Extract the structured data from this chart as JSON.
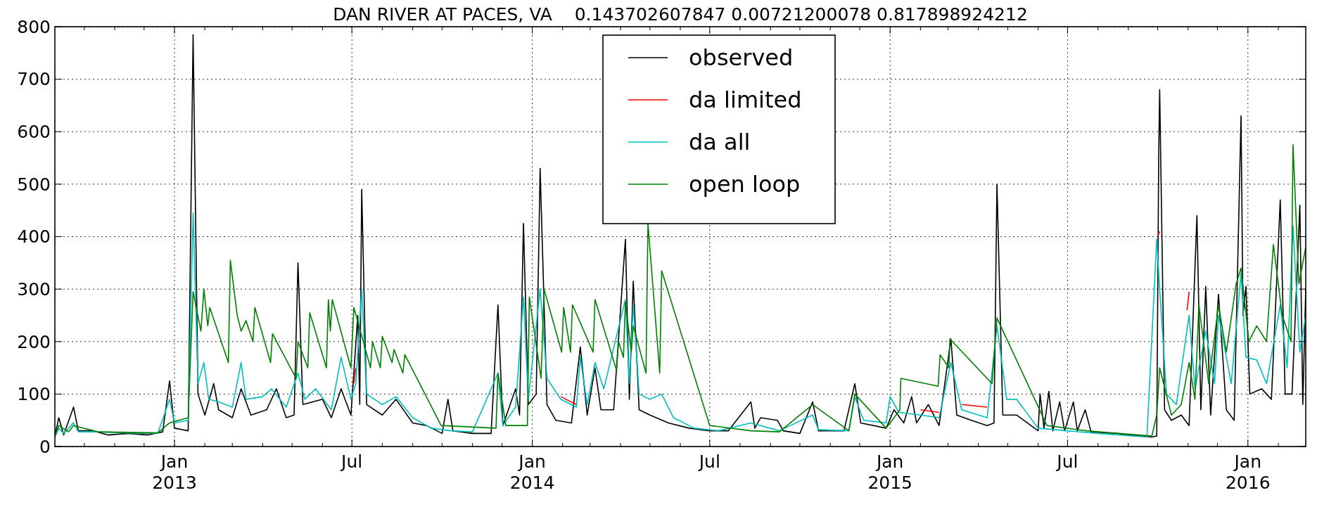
{
  "chart_data": {
    "type": "line",
    "title": "DAN RIVER AT PACES, VA    0.143702607847 0.00721200078 0.817898924212",
    "xlim": [
      "2012-09-01",
      "2016-02-29"
    ],
    "xticks": [
      {
        "value": "2012-10-01",
        "label": null
      },
      {
        "value": "2012-11-01",
        "label": null
      },
      {
        "value": "2012-12-01",
        "label": null
      },
      {
        "value": "2013-01-01",
        "label": "Jan\n2013"
      },
      {
        "value": "2013-02-01",
        "label": null
      },
      {
        "value": "2013-03-01",
        "label": null
      },
      {
        "value": "2013-04-01",
        "label": null
      },
      {
        "value": "2013-05-01",
        "label": null
      },
      {
        "value": "2013-06-01",
        "label": null
      },
      {
        "value": "2013-07-01",
        "label": "Jul"
      },
      {
        "value": "2013-08-01",
        "label": null
      },
      {
        "value": "2013-09-01",
        "label": null
      },
      {
        "value": "2013-10-01",
        "label": null
      },
      {
        "value": "2013-11-01",
        "label": null
      },
      {
        "value": "2013-12-01",
        "label": null
      },
      {
        "value": "2014-01-01",
        "label": "Jan\n2014"
      },
      {
        "value": "2014-02-01",
        "label": null
      },
      {
        "value": "2014-03-01",
        "label": null
      },
      {
        "value": "2014-04-01",
        "label": null
      },
      {
        "value": "2014-05-01",
        "label": null
      },
      {
        "value": "2014-06-01",
        "label": null
      },
      {
        "value": "2014-07-01",
        "label": "Jul"
      },
      {
        "value": "2014-08-01",
        "label": null
      },
      {
        "value": "2014-09-01",
        "label": null
      },
      {
        "value": "2014-10-01",
        "label": null
      },
      {
        "value": "2014-11-01",
        "label": null
      },
      {
        "value": "2014-12-01",
        "label": null
      },
      {
        "value": "2015-01-01",
        "label": "Jan\n2015"
      },
      {
        "value": "2015-02-01",
        "label": null
      },
      {
        "value": "2015-03-01",
        "label": null
      },
      {
        "value": "2015-04-01",
        "label": null
      },
      {
        "value": "2015-05-01",
        "label": null
      },
      {
        "value": "2015-06-01",
        "label": null
      },
      {
        "value": "2015-07-01",
        "label": "Jul"
      },
      {
        "value": "2015-08-01",
        "label": null
      },
      {
        "value": "2015-09-01",
        "label": null
      },
      {
        "value": "2015-10-01",
        "label": null
      },
      {
        "value": "2015-11-01",
        "label": null
      },
      {
        "value": "2015-12-01",
        "label": null
      },
      {
        "value": "2016-01-01",
        "label": "Jan\n2016"
      },
      {
        "value": "2016-02-01",
        "label": null
      }
    ],
    "ylim": [
      0,
      800
    ],
    "yticks": [
      0,
      100,
      200,
      300,
      400,
      500,
      600,
      700,
      800
    ],
    "grid": true,
    "legend": "top",
    "line_style": "solid",
    "marker": "none",
    "series": [
      {
        "name": "observed",
        "color": "#000000",
        "x": [
          "2012-09-01",
          "2012-09-05",
          "2012-09-10",
          "2012-09-20",
          "2012-09-25",
          "2012-10-10",
          "2012-10-25",
          "2012-11-15",
          "2012-12-05",
          "2012-12-20",
          "2012-12-27",
          "2013-01-01",
          "2013-01-15",
          "2013-01-20",
          "2013-01-25",
          "2013-02-01",
          "2013-02-10",
          "2013-02-15",
          "2013-03-01",
          "2013-03-10",
          "2013-03-20",
          "2013-04-05",
          "2013-04-15",
          "2013-04-25",
          "2013-05-03",
          "2013-05-07",
          "2013-05-12",
          "2013-06-01",
          "2013-06-10",
          "2013-06-20",
          "2013-06-30",
          "2013-07-07",
          "2013-07-09",
          "2013-07-11",
          "2013-07-16",
          "2013-08-01",
          "2013-08-15",
          "2013-09-01",
          "2013-09-15",
          "2013-10-01",
          "2013-10-07",
          "2013-10-12",
          "2013-11-01",
          "2013-11-20",
          "2013-11-27",
          "2013-12-02",
          "2013-12-15",
          "2013-12-19",
          "2013-12-23",
          "2013-12-28",
          "2014-01-05",
          "2014-01-09",
          "2014-01-16",
          "2014-01-25",
          "2014-02-10",
          "2014-02-19",
          "2014-02-26",
          "2014-03-06",
          "2014-03-12",
          "2014-03-25",
          "2014-04-06",
          "2014-04-10",
          "2014-04-14",
          "2014-04-20",
          "2014-05-01",
          "2014-05-20",
          "2014-06-10",
          "2014-07-01",
          "2014-07-20",
          "2014-08-12",
          "2014-08-16",
          "2014-08-22",
          "2014-09-08",
          "2014-09-14",
          "2014-10-01",
          "2014-10-14",
          "2014-10-20",
          "2014-11-15",
          "2014-11-26",
          "2014-12-02",
          "2014-12-28",
          "2015-01-05",
          "2015-01-15",
          "2015-01-23",
          "2015-01-28",
          "2015-02-09",
          "2015-02-20",
          "2015-03-04",
          "2015-03-10",
          "2015-03-25",
          "2015-04-10",
          "2015-04-17",
          "2015-04-20",
          "2015-04-26",
          "2015-05-10",
          "2015-06-01",
          "2015-06-03",
          "2015-06-07",
          "2015-06-12",
          "2015-06-16",
          "2015-06-23",
          "2015-06-28",
          "2015-07-07",
          "2015-07-11",
          "2015-07-19",
          "2015-07-25",
          "2015-08-20",
          "2015-09-25",
          "2015-09-30",
          "2015-10-02",
          "2015-10-03",
          "2015-10-08",
          "2015-10-15",
          "2015-10-25",
          "2015-11-02",
          "2015-11-10",
          "2015-11-14",
          "2015-11-19",
          "2015-11-24",
          "2015-12-02",
          "2015-12-10",
          "2015-12-18",
          "2015-12-25",
          "2015-12-27",
          "2015-12-30",
          "2016-01-03",
          "2016-01-15",
          "2016-01-25",
          "2016-02-03",
          "2016-02-08",
          "2016-02-15",
          "2016-02-23",
          "2016-02-26",
          "2016-02-29"
        ],
        "values": [
          20,
          55,
          22,
          75,
          30,
          30,
          22,
          25,
          22,
          28,
          125,
          35,
          30,
          785,
          100,
          60,
          120,
          70,
          55,
          110,
          60,
          70,
          110,
          55,
          60,
          350,
          80,
          90,
          55,
          110,
          60,
          250,
          80,
          490,
          80,
          60,
          90,
          45,
          40,
          25,
          90,
          30,
          25,
          25,
          270,
          40,
          110,
          60,
          425,
          80,
          100,
          530,
          80,
          50,
          45,
          190,
          60,
          150,
          70,
          70,
          395,
          90,
          315,
          70,
          60,
          45,
          35,
          30,
          30,
          85,
          35,
          55,
          50,
          30,
          25,
          85,
          30,
          30,
          120,
          45,
          35,
          70,
          45,
          95,
          45,
          80,
          40,
          205,
          60,
          50,
          40,
          45,
          500,
          60,
          60,
          30,
          100,
          35,
          105,
          30,
          85,
          30,
          85,
          30,
          70,
          28,
          25,
          18,
          20,
          550,
          680,
          70,
          50,
          60,
          40,
          440,
          70,
          305,
          60,
          290,
          70,
          50,
          630,
          250,
          305,
          100,
          110,
          90,
          470,
          100,
          100,
          460,
          80,
          300
        ]
      },
      {
        "name": "da limited",
        "color": "#ff0000",
        "x": [
          "2013-07-03",
          "2013-07-05",
          "2013-10-01",
          "2014-01-30",
          "2014-02-15",
          "2014-06-01",
          "2015-02-01",
          "2015-02-20",
          "2015-03-10",
          "2015-03-15",
          "2015-04-10",
          "2015-06-01",
          "2015-10-01",
          "2015-10-03",
          "2015-10-15",
          "2015-10-31",
          "2015-11-02"
        ],
        "values": [
          120,
          150,
          null,
          95,
          80,
          null,
          70,
          65,
          null,
          80,
          75,
          null,
          400,
          410,
          null,
          260,
          295
        ]
      },
      {
        "name": "da all",
        "color": "#00bfbf",
        "x": [
          "2012-09-01",
          "2012-09-05",
          "2012-09-10",
          "2012-09-20",
          "2012-09-25",
          "2012-10-15",
          "2012-11-15",
          "2012-12-15",
          "2012-12-27",
          "2013-01-01",
          "2013-01-15",
          "2013-01-20",
          "2013-01-25",
          "2013-01-31",
          "2013-02-05",
          "2013-02-15",
          "2013-03-01",
          "2013-03-10",
          "2013-03-15",
          "2013-04-01",
          "2013-04-10",
          "2013-04-25",
          "2013-05-07",
          "2013-05-14",
          "2013-05-25",
          "2013-06-10",
          "2013-06-20",
          "2013-06-30",
          "2013-07-05",
          "2013-07-11",
          "2013-07-16",
          "2013-08-01",
          "2013-08-15",
          "2013-09-01",
          "2013-09-20",
          "2013-10-10",
          "2013-11-01",
          "2013-11-27",
          "2013-12-02",
          "2013-12-15",
          "2013-12-23",
          "2013-12-28",
          "2014-01-09",
          "2014-01-16",
          "2014-01-30",
          "2014-02-15",
          "2014-02-19",
          "2014-02-26",
          "2014-03-06",
          "2014-03-15",
          "2014-04-06",
          "2014-04-10",
          "2014-04-14",
          "2014-04-20",
          "2014-05-01",
          "2014-05-13",
          "2014-05-25",
          "2014-06-15",
          "2014-07-10",
          "2014-08-12",
          "2014-09-10",
          "2014-10-14",
          "2014-10-20",
          "2014-11-20",
          "2014-11-26",
          "2014-12-05",
          "2014-12-28",
          "2015-01-01",
          "2015-01-10",
          "2015-02-01",
          "2015-02-20",
          "2015-03-04",
          "2015-03-15",
          "2015-04-10",
          "2015-04-20",
          "2015-04-30",
          "2015-05-10",
          "2015-06-01",
          "2015-07-01",
          "2015-08-01",
          "2015-09-20",
          "2015-09-30",
          "2015-10-03",
          "2015-10-10",
          "2015-10-20",
          "2015-11-02",
          "2015-11-08",
          "2015-11-19",
          "2015-11-28",
          "2015-12-02",
          "2015-12-15",
          "2015-12-25",
          "2015-12-30",
          "2016-01-10",
          "2016-01-20",
          "2016-02-03",
          "2016-02-10",
          "2016-02-16",
          "2016-02-23",
          "2016-02-29"
        ],
        "values": [
          18,
          35,
          25,
          45,
          28,
          28,
          26,
          25,
          90,
          45,
          50,
          445,
          120,
          160,
          90,
          85,
          75,
          160,
          90,
          95,
          110,
          75,
          140,
          90,
          110,
          70,
          170,
          90,
          120,
          300,
          100,
          80,
          95,
          55,
          35,
          30,
          28,
          140,
          40,
          75,
          285,
          90,
          300,
          130,
          90,
          75,
          170,
          80,
          160,
          110,
          280,
          120,
          270,
          100,
          90,
          100,
          55,
          35,
          30,
          45,
          30,
          60,
          32,
          30,
          95,
          50,
          45,
          95,
          65,
          60,
          55,
          160,
          70,
          55,
          230,
          90,
          90,
          35,
          30,
          25,
          18,
          395,
          300,
          100,
          80,
          250,
          110,
          220,
          120,
          250,
          120,
          330,
          170,
          165,
          120,
          270,
          150,
          420,
          180,
          250
        ]
      },
      {
        "name": "open loop",
        "color": "#008000",
        "x": [
          "2012-09-01",
          "2012-09-05",
          "2012-09-15",
          "2012-09-20",
          "2012-10-15",
          "2012-11-15",
          "2012-12-15",
          "2012-12-27",
          "2013-01-15",
          "2013-01-20",
          "2013-01-28",
          "2013-01-31",
          "2013-02-04",
          "2013-02-06",
          "2013-02-25",
          "2013-02-27",
          "2013-03-06",
          "2013-03-10",
          "2013-03-15",
          "2013-03-22",
          "2013-03-24",
          "2013-04-09",
          "2013-04-11",
          "2013-05-05",
          "2013-05-07",
          "2013-05-17",
          "2013-05-19",
          "2013-06-05",
          "2013-06-07",
          "2013-06-09",
          "2013-06-11",
          "2013-06-30",
          "2013-07-03",
          "2013-07-20",
          "2013-07-22",
          "2013-07-30",
          "2013-08-01",
          "2013-08-11",
          "2013-08-13",
          "2013-08-22",
          "2013-08-24",
          "2013-09-30",
          "2013-11-25",
          "2013-11-27",
          "2013-12-05",
          "2013-12-27",
          "2013-12-29",
          "2014-01-10",
          "2014-01-13",
          "2014-01-31",
          "2014-02-02",
          "2014-02-09",
          "2014-02-11",
          "2014-03-04",
          "2014-03-06",
          "2014-03-28",
          "2014-03-30",
          "2014-04-04",
          "2014-04-06",
          "2014-04-12",
          "2014-04-14",
          "2014-04-27",
          "2014-04-29",
          "2014-05-11",
          "2014-05-13",
          "2014-07-01",
          "2014-08-12",
          "2014-09-10",
          "2014-10-14",
          "2014-11-20",
          "2014-11-26",
          "2014-12-28",
          "2015-01-11",
          "2015-01-12",
          "2015-02-19",
          "2015-02-21",
          "2015-03-02",
          "2015-03-03",
          "2015-04-15",
          "2015-04-20",
          "2015-06-10",
          "2015-07-20",
          "2015-09-25",
          "2015-09-30",
          "2015-10-03",
          "2015-10-15",
          "2015-10-25",
          "2015-11-02",
          "2015-11-08",
          "2015-11-12",
          "2015-11-22",
          "2015-12-02",
          "2015-12-10",
          "2015-12-20",
          "2015-12-25",
          "2016-01-02",
          "2016-01-10",
          "2016-01-20",
          "2016-01-27",
          "2016-02-05",
          "2016-02-14",
          "2016-02-16",
          "2016-02-22",
          "2016-02-29"
        ],
        "values": [
          20,
          40,
          28,
          40,
          28,
          27,
          26,
          45,
          55,
          295,
          220,
          300,
          230,
          265,
          160,
          355,
          250,
          220,
          240,
          200,
          265,
          160,
          215,
          130,
          200,
          150,
          255,
          150,
          280,
          220,
          280,
          150,
          265,
          150,
          200,
          150,
          210,
          160,
          185,
          140,
          175,
          40,
          35,
          140,
          40,
          40,
          285,
          130,
          300,
          180,
          265,
          180,
          270,
          180,
          280,
          145,
          200,
          170,
          275,
          180,
          230,
          140,
          425,
          140,
          335,
          40,
          30,
          28,
          80,
          30,
          100,
          35,
          70,
          130,
          115,
          175,
          150,
          205,
          120,
          245,
          40,
          30,
          20,
          60,
          150,
          60,
          80,
          160,
          90,
          270,
          120,
          270,
          180,
          310,
          340,
          200,
          230,
          200,
          385,
          250,
          200,
          575,
          310,
          380
        ]
      }
    ]
  }
}
